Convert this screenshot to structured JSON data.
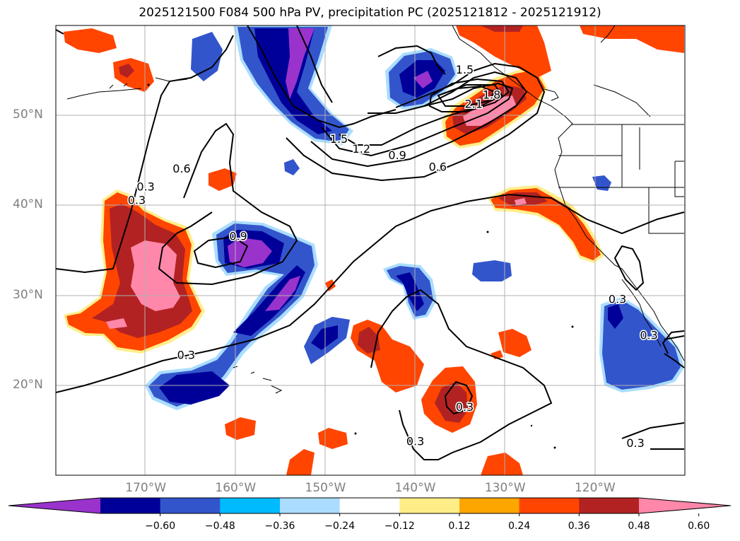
{
  "title": "2025121500 F084 500 hPa PV, precipitation PC (2025121812 - 2025121912)",
  "map": {
    "extent": {
      "lon_min": -180,
      "lon_max": -110,
      "lat_min": 10,
      "lat_max": 60
    },
    "lat_labels": [
      {
        "lat": 50,
        "label": "50°N"
      },
      {
        "lat": 40,
        "label": "40°N"
      },
      {
        "lat": 30,
        "label": "30°N"
      },
      {
        "lat": 20,
        "label": "20°N"
      }
    ],
    "lon_labels": [
      {
        "lon": -170,
        "label": "170°W"
      },
      {
        "lon": -160,
        "label": "160°W"
      },
      {
        "lon": -150,
        "label": "150°W"
      },
      {
        "lon": -140,
        "label": "140°W"
      },
      {
        "lon": -130,
        "label": "130°W"
      },
      {
        "lon": -120,
        "label": "120°W"
      }
    ],
    "grid": true,
    "contour_labels": [
      {
        "lon": -171,
        "lat": 40.5,
        "text": "0.3"
      },
      {
        "lon": -170,
        "lat": 42,
        "text": "0.3"
      },
      {
        "lon": -166,
        "lat": 44,
        "text": "0.6"
      },
      {
        "lon": -159.7,
        "lat": 36.5,
        "text": "0.9"
      },
      {
        "lon": -165.5,
        "lat": 23.3,
        "text": "0.3"
      },
      {
        "lon": -148.5,
        "lat": 47.3,
        "text": "1.5"
      },
      {
        "lon": -146,
        "lat": 46.2,
        "text": "1.2"
      },
      {
        "lon": -142,
        "lat": 45.5,
        "text": "0.9"
      },
      {
        "lon": -137.5,
        "lat": 44.2,
        "text": "0.6"
      },
      {
        "lon": -134.5,
        "lat": 55,
        "text": "1.5"
      },
      {
        "lon": -133.5,
        "lat": 51.2,
        "text": "2.1"
      },
      {
        "lon": -131.5,
        "lat": 52.2,
        "text": "1.8"
      },
      {
        "lon": -134.5,
        "lat": 17.5,
        "text": "0.3"
      },
      {
        "lon": -140,
        "lat": 13.7,
        "text": "0.3"
      },
      {
        "lon": -117.5,
        "lat": 29.5,
        "text": "0.3"
      },
      {
        "lon": -115.5,
        "lat": 13.5,
        "text": "0.3"
      },
      {
        "lon": -114,
        "lat": 25.5,
        "text": "0.3"
      }
    ]
  },
  "colorbar": {
    "colors": [
      "#9933cc",
      "#000099",
      "#3355cc",
      "#00bbff",
      "#aaddff",
      "#ffffff",
      "#ffee88",
      "#ffa500",
      "#ff4500",
      "#b22222",
      "#ff88aa"
    ],
    "ticks": [
      "−0.60",
      "−0.48",
      "−0.36",
      "−0.24",
      "−0.12",
      "0.12",
      "0.24",
      "0.36",
      "0.48",
      "0.60"
    ]
  }
}
